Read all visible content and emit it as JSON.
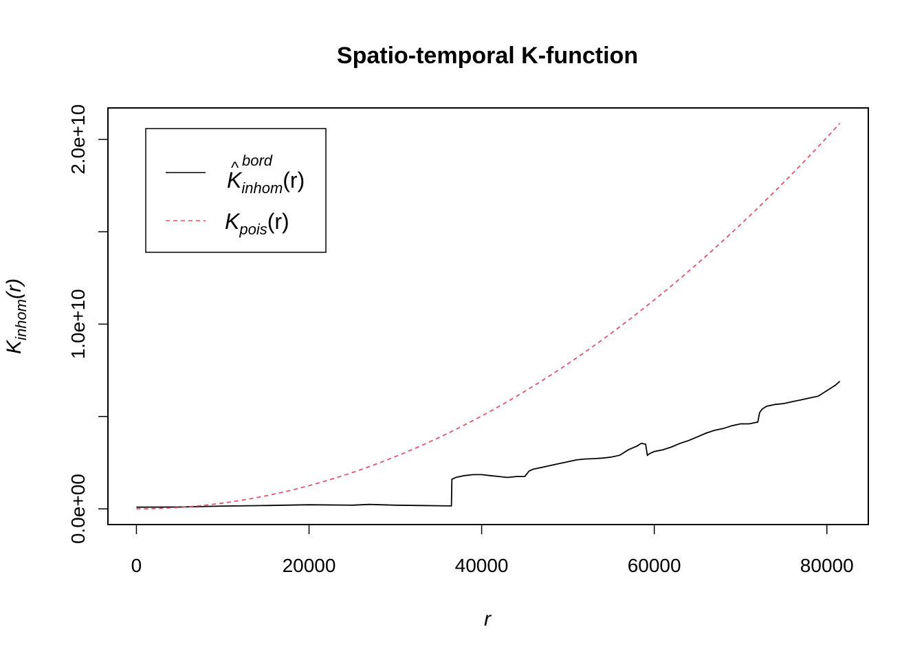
{
  "chart_data": {
    "type": "line",
    "title": "Spatio-temporal K-function",
    "xlabel": "r",
    "ylabel": {
      "main": "K",
      "sub": "inhom",
      "arg": "(r)"
    },
    "xlim": [
      -3300,
      84800
    ],
    "ylim": [
      -850000000,
      21700000000
    ],
    "x_ticks": [
      0,
      20000,
      40000,
      60000,
      80000
    ],
    "x_tick_labels": [
      "0",
      "20000",
      "40000",
      "60000",
      "80000"
    ],
    "y_ticks": [
      0,
      5000000000,
      10000000000,
      15000000000,
      20000000000
    ],
    "y_tick_labels": [
      "0.0e+00",
      "",
      "1.0e+10",
      "",
      "2.0e+10"
    ],
    "grid": false,
    "legend_position": "top-left",
    "series": [
      {
        "name": {
          "main": "K",
          "accent": "^",
          "sup": "bord",
          "sub": "inhom",
          "arg": "(r)"
        },
        "color": "#000000",
        "dash": "solid",
        "x": [
          0,
          5000,
          10000,
          15000,
          20000,
          25000,
          27000,
          30000,
          33000,
          36500,
          36550,
          37000,
          38000,
          39000,
          40000,
          41000,
          42000,
          43000,
          44000,
          45000,
          45500,
          46000,
          47000,
          48000,
          49000,
          50000,
          51000,
          52000,
          53000,
          54000,
          55000,
          56000,
          57000,
          58000,
          58500,
          59000,
          59200,
          59500,
          60000,
          61000,
          62000,
          63000,
          64000,
          65000,
          66000,
          67000,
          68000,
          69000,
          70000,
          71000,
          72000,
          72200,
          72500,
          73000,
          74000,
          75000,
          76000,
          77000,
          78000,
          79000,
          80000,
          81000,
          81500
        ],
        "y": [
          90000000,
          100000000,
          150000000,
          180000000,
          220000000,
          200000000,
          240000000,
          200000000,
          180000000,
          160000000,
          1600000000,
          1700000000,
          1800000000,
          1850000000,
          1850000000,
          1800000000,
          1750000000,
          1700000000,
          1750000000,
          1750000000,
          2050000000,
          2150000000,
          2250000000,
          2350000000,
          2450000000,
          2550000000,
          2650000000,
          2700000000,
          2720000000,
          2750000000,
          2800000000,
          2900000000,
          3200000000,
          3400000000,
          3550000000,
          3500000000,
          2900000000,
          3000000000,
          3100000000,
          3200000000,
          3350000000,
          3550000000,
          3700000000,
          3900000000,
          4100000000,
          4250000000,
          4350000000,
          4500000000,
          4600000000,
          4600000000,
          4700000000,
          5200000000,
          5400000000,
          5550000000,
          5650000000,
          5700000000,
          5800000000,
          5900000000,
          6000000000,
          6100000000,
          6400000000,
          6700000000,
          6900000000
        ]
      },
      {
        "name": {
          "main": "K",
          "sub": "pois",
          "arg": "(r)"
        },
        "color": "#DF536B",
        "dash": "dashed",
        "formula": "pi*r^2"
      }
    ]
  }
}
